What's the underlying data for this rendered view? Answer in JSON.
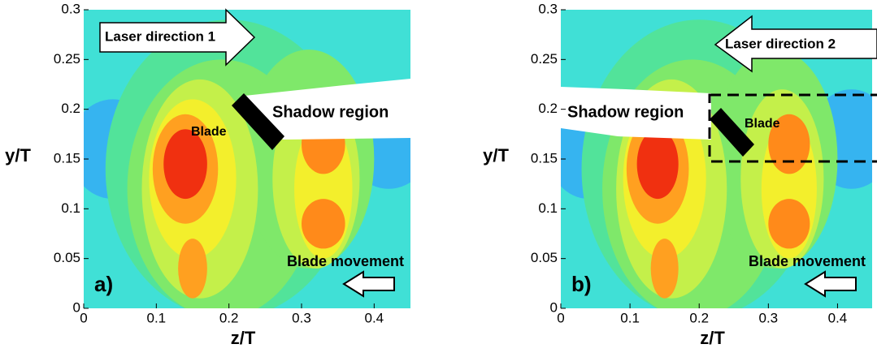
{
  "chart_data": [
    {
      "type": "contour",
      "xlabel": "z/T",
      "ylabel": "y/T",
      "xlim": [
        0,
        0.45
      ],
      "ylim": [
        0,
        0.3
      ],
      "xticks": [
        0,
        0.1,
        0.2,
        0.3,
        0.4
      ],
      "yticks": [
        0,
        0.05,
        0.1,
        0.15,
        0.2,
        0.25,
        0.3
      ],
      "annotations": {
        "laser": "Laser direction 1",
        "shadow": "Shadow region",
        "blade": "Blade",
        "movement": "Blade movement",
        "panel": "a)"
      }
    },
    {
      "type": "contour",
      "xlabel": "z/T",
      "ylabel": "y/T",
      "xlim": [
        0,
        0.45
      ],
      "ylim": [
        0,
        0.3
      ],
      "xticks": [
        0,
        0.1,
        0.2,
        0.3,
        0.4
      ],
      "yticks": [
        0,
        0.05,
        0.1,
        0.15,
        0.2,
        0.25,
        0.3
      ],
      "annotations": {
        "laser": "Laser direction 2",
        "shadow": "Shadow region",
        "blade": "Blade",
        "movement": "Blade movement",
        "panel": "b)"
      }
    }
  ]
}
